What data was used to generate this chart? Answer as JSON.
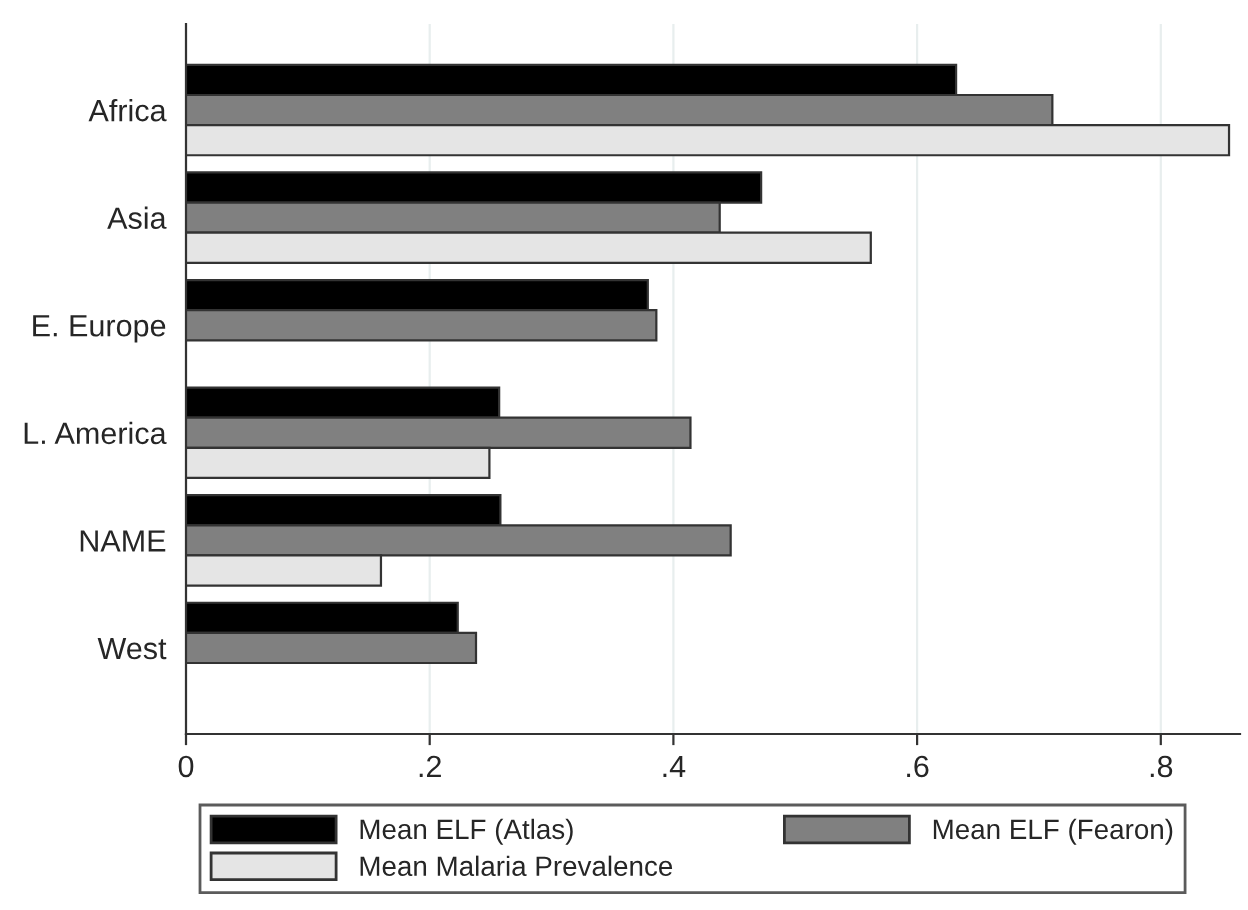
{
  "chart_data": {
    "type": "bar",
    "orientation": "horizontal",
    "categories": [
      "Africa",
      "Asia",
      "E. Europe",
      "L. America",
      "NAME",
      "West"
    ],
    "series": [
      {
        "name": "Mean ELF (Atlas)",
        "color": "#000000",
        "values": [
          0.632,
          0.472,
          0.379,
          0.257,
          0.258,
          0.223
        ]
      },
      {
        "name": "Mean ELF (Fearon)",
        "color": "#808080",
        "values": [
          0.711,
          0.438,
          0.386,
          0.414,
          0.447,
          0.238
        ]
      },
      {
        "name": "Mean Malaria Prevalence",
        "color": "#e5e5e5",
        "values": [
          0.856,
          0.562,
          null,
          0.249,
          0.16,
          null
        ]
      }
    ],
    "xlim": [
      0,
      0.865
    ],
    "xticks": [
      0,
      {
        "value": 0.2,
        "label": ".2"
      },
      {
        "value": 0.4,
        "label": ".4"
      },
      {
        "value": 0.6,
        "label": ".6"
      },
      {
        "value": 0.8,
        "label": ".8"
      }
    ],
    "grid": "x",
    "legend": "bottom"
  }
}
